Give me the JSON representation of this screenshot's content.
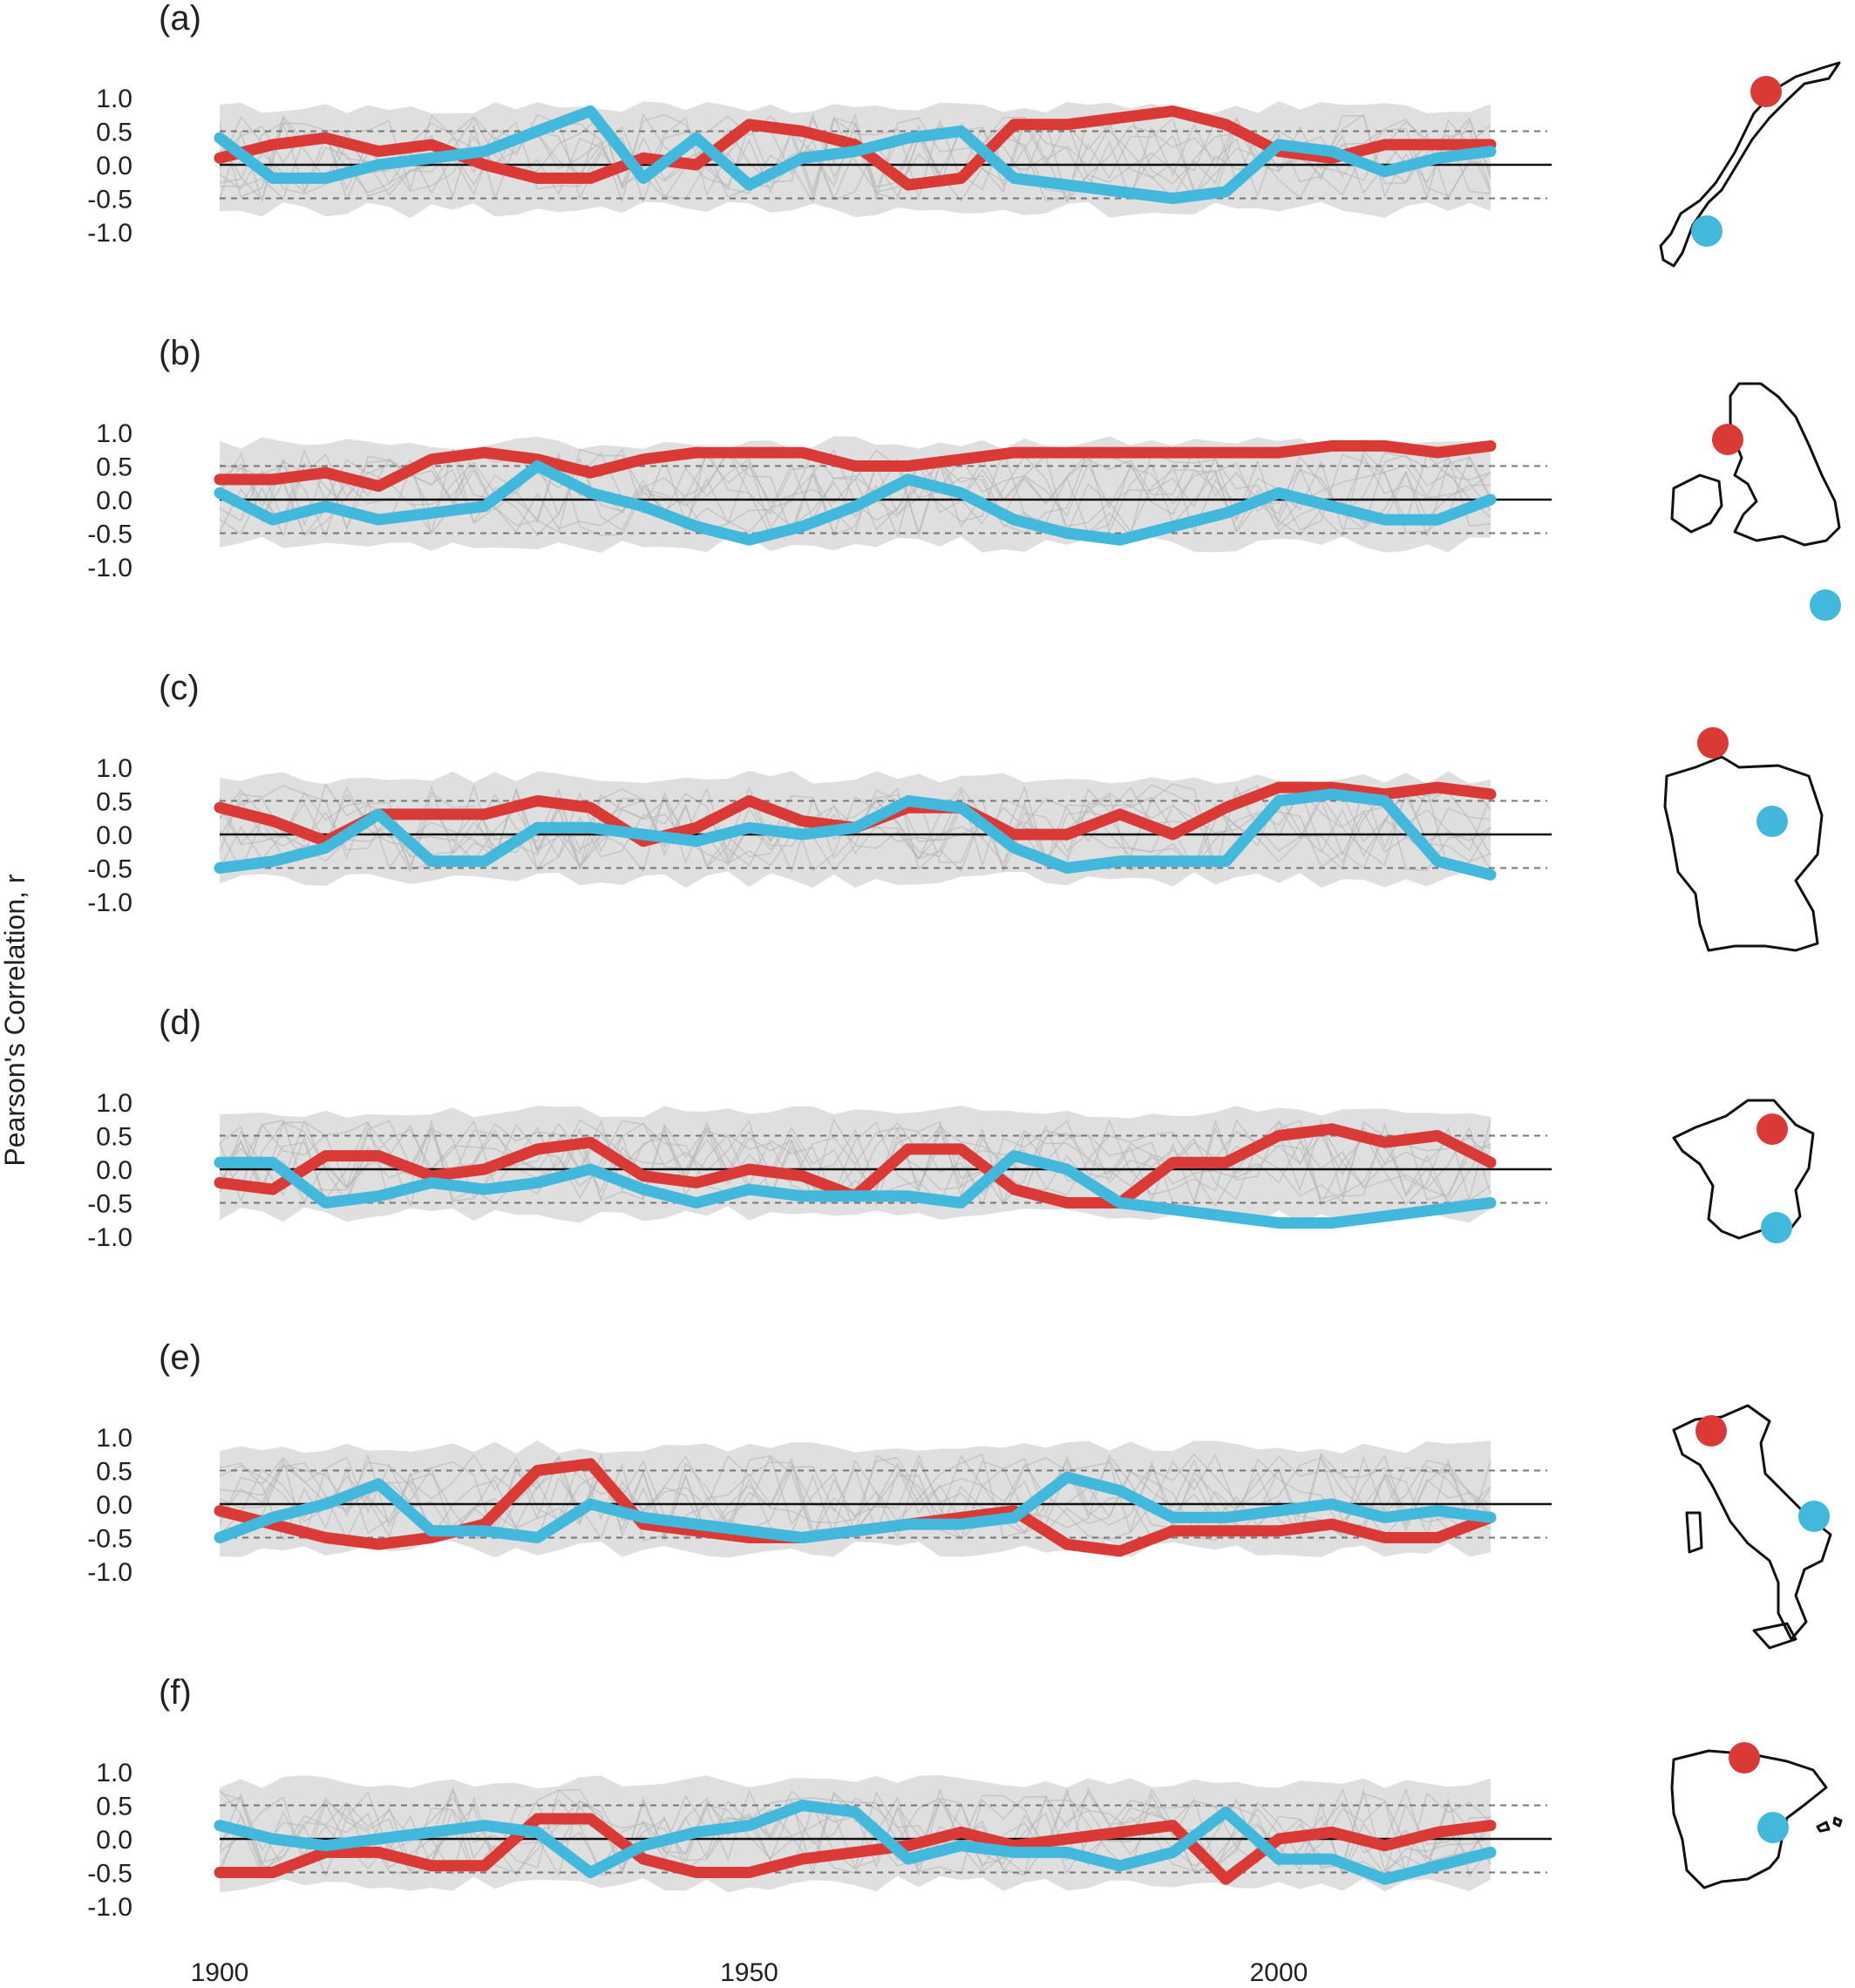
{
  "figure": {
    "ylabel": "Pearson's Correlation, r",
    "x_ticks": [
      "1900",
      "1950",
      "2000"
    ],
    "y_ticks": [
      "1.0",
      "0.5",
      "0.0",
      "-0.5",
      "-1.0"
    ],
    "colors": {
      "red": "#d93a35",
      "blue": "#42b8dc",
      "gray": "#c4c4c4",
      "dashed": "#777777",
      "zero": "#111111"
    },
    "map_icons": [
      "norway-map-icon",
      "uk-ireland-map-icon",
      "germany-map-icon",
      "france-map-icon",
      "italy-map-icon",
      "spain-map-icon"
    ]
  },
  "chart_data": [
    {
      "type": "line",
      "panel": "(a)",
      "map": "norway-map-icon",
      "xlim": [
        1900,
        2020
      ],
      "ylim": [
        -1,
        1
      ],
      "dashed_lines": [
        0.5,
        -0.5
      ],
      "zero_line": 0,
      "x": [
        1900,
        1905,
        1910,
        1915,
        1920,
        1925,
        1930,
        1935,
        1940,
        1945,
        1950,
        1955,
        1960,
        1965,
        1970,
        1975,
        1980,
        1985,
        1990,
        1995,
        2000,
        2005,
        2010,
        2015,
        2020
      ],
      "series": [
        {
          "color": "red",
          "values": [
            0.1,
            0.3,
            0.4,
            0.2,
            0.3,
            0.0,
            -0.2,
            -0.2,
            0.1,
            0.0,
            0.6,
            0.5,
            0.3,
            -0.3,
            -0.2,
            0.6,
            0.6,
            0.7,
            0.8,
            0.6,
            0.2,
            0.1,
            0.3,
            0.3,
            0.3
          ]
        },
        {
          "color": "blue",
          "values": [
            0.4,
            -0.2,
            -0.2,
            0.0,
            0.1,
            0.2,
            0.5,
            0.8,
            -0.2,
            0.4,
            -0.3,
            0.1,
            0.2,
            0.4,
            0.5,
            -0.2,
            -0.3,
            -0.4,
            -0.5,
            -0.4,
            0.3,
            0.2,
            -0.1,
            0.1,
            0.2
          ]
        }
      ]
    },
    {
      "type": "line",
      "panel": "(b)",
      "map": "uk-ireland-map-icon",
      "xlim": [
        1900,
        2020
      ],
      "ylim": [
        -1,
        1
      ],
      "dashed_lines": [
        0.5,
        -0.5
      ],
      "zero_line": 0,
      "x": [
        1900,
        1905,
        1910,
        1915,
        1920,
        1925,
        1930,
        1935,
        1940,
        1945,
        1950,
        1955,
        1960,
        1965,
        1970,
        1975,
        1980,
        1985,
        1990,
        1995,
        2000,
        2005,
        2010,
        2015,
        2020
      ],
      "series": [
        {
          "color": "red",
          "values": [
            0.3,
            0.3,
            0.4,
            0.2,
            0.6,
            0.7,
            0.6,
            0.4,
            0.6,
            0.7,
            0.7,
            0.7,
            0.5,
            0.5,
            0.6,
            0.7,
            0.7,
            0.7,
            0.7,
            0.7,
            0.7,
            0.8,
            0.8,
            0.7,
            0.8
          ]
        },
        {
          "color": "blue",
          "values": [
            0.1,
            -0.3,
            -0.1,
            -0.3,
            -0.2,
            -0.1,
            0.5,
            0.1,
            -0.1,
            -0.4,
            -0.6,
            -0.4,
            -0.1,
            0.3,
            0.1,
            -0.3,
            -0.5,
            -0.6,
            -0.4,
            -0.2,
            0.1,
            -0.1,
            -0.3,
            -0.3,
            0.0
          ]
        }
      ]
    },
    {
      "type": "line",
      "panel": "(c)",
      "map": "germany-map-icon",
      "xlim": [
        1900,
        2020
      ],
      "ylim": [
        -1,
        1
      ],
      "dashed_lines": [
        0.5,
        -0.5
      ],
      "zero_line": 0,
      "x": [
        1900,
        1905,
        1910,
        1915,
        1920,
        1925,
        1930,
        1935,
        1940,
        1945,
        1950,
        1955,
        1960,
        1965,
        1970,
        1975,
        1980,
        1985,
        1990,
        1995,
        2000,
        2005,
        2010,
        2015,
        2020
      ],
      "series": [
        {
          "color": "red",
          "values": [
            0.4,
            0.2,
            -0.1,
            0.3,
            0.3,
            0.3,
            0.5,
            0.4,
            -0.1,
            0.1,
            0.5,
            0.2,
            0.1,
            0.4,
            0.4,
            0.0,
            0.0,
            0.3,
            0.0,
            0.4,
            0.7,
            0.7,
            0.6,
            0.7,
            0.6
          ]
        },
        {
          "color": "blue",
          "values": [
            -0.5,
            -0.4,
            -0.2,
            0.3,
            -0.4,
            -0.4,
            0.1,
            0.1,
            0.0,
            -0.1,
            0.1,
            0.0,
            0.1,
            0.5,
            0.4,
            -0.2,
            -0.5,
            -0.4,
            -0.4,
            -0.4,
            0.5,
            0.6,
            0.5,
            -0.4,
            -0.6
          ]
        }
      ]
    },
    {
      "type": "line",
      "panel": "(d)",
      "map": "france-map-icon",
      "xlim": [
        1900,
        2020
      ],
      "ylim": [
        -1,
        1
      ],
      "dashed_lines": [
        0.5,
        -0.5
      ],
      "zero_line": 0,
      "x": [
        1900,
        1905,
        1910,
        1915,
        1920,
        1925,
        1930,
        1935,
        1940,
        1945,
        1950,
        1955,
        1960,
        1965,
        1970,
        1975,
        1980,
        1985,
        1990,
        1995,
        2000,
        2005,
        2010,
        2015,
        2020
      ],
      "series": [
        {
          "color": "red",
          "values": [
            -0.2,
            -0.3,
            0.2,
            0.2,
            -0.1,
            0.0,
            0.3,
            0.4,
            -0.1,
            -0.2,
            0.0,
            -0.1,
            -0.4,
            0.3,
            0.3,
            -0.3,
            -0.5,
            -0.5,
            0.1,
            0.1,
            0.5,
            0.6,
            0.4,
            0.5,
            0.1
          ]
        },
        {
          "color": "blue",
          "values": [
            0.1,
            0.1,
            -0.5,
            -0.4,
            -0.2,
            -0.3,
            -0.2,
            0.0,
            -0.3,
            -0.5,
            -0.3,
            -0.4,
            -0.4,
            -0.4,
            -0.5,
            0.2,
            0.0,
            -0.5,
            -0.6,
            -0.7,
            -0.8,
            -0.8,
            -0.7,
            -0.6,
            -0.5
          ]
        }
      ]
    },
    {
      "type": "line",
      "panel": "(e)",
      "map": "italy-map-icon",
      "xlim": [
        1900,
        2020
      ],
      "ylim": [
        -1,
        1
      ],
      "dashed_lines": [
        0.5,
        -0.5
      ],
      "zero_line": 0,
      "x": [
        1900,
        1905,
        1910,
        1915,
        1920,
        1925,
        1930,
        1935,
        1940,
        1945,
        1950,
        1955,
        1960,
        1965,
        1970,
        1975,
        1980,
        1985,
        1990,
        1995,
        2000,
        2005,
        2010,
        2015,
        2020
      ],
      "series": [
        {
          "color": "red",
          "values": [
            -0.1,
            -0.3,
            -0.5,
            -0.6,
            -0.5,
            -0.3,
            0.5,
            0.6,
            -0.3,
            -0.4,
            -0.5,
            -0.5,
            -0.4,
            -0.3,
            -0.2,
            -0.1,
            -0.6,
            -0.7,
            -0.4,
            -0.4,
            -0.4,
            -0.3,
            -0.5,
            -0.5,
            -0.2
          ]
        },
        {
          "color": "blue",
          "values": [
            -0.5,
            -0.2,
            0.0,
            0.3,
            -0.4,
            -0.4,
            -0.5,
            0.0,
            -0.2,
            -0.3,
            -0.4,
            -0.5,
            -0.4,
            -0.3,
            -0.3,
            -0.2,
            0.4,
            0.2,
            -0.2,
            -0.2,
            -0.1,
            0.0,
            -0.2,
            -0.1,
            -0.2
          ]
        }
      ]
    },
    {
      "type": "line",
      "panel": "(f)",
      "map": "spain-map-icon",
      "xlim": [
        1900,
        2020
      ],
      "ylim": [
        -1,
        1
      ],
      "dashed_lines": [
        0.5,
        -0.5
      ],
      "zero_line": 0,
      "x": [
        1900,
        1905,
        1910,
        1915,
        1920,
        1925,
        1930,
        1935,
        1940,
        1945,
        1950,
        1955,
        1960,
        1965,
        1970,
        1975,
        1980,
        1985,
        1990,
        1995,
        2000,
        2005,
        2010,
        2015,
        2020
      ],
      "series": [
        {
          "color": "red",
          "values": [
            -0.5,
            -0.5,
            -0.2,
            -0.2,
            -0.4,
            -0.4,
            0.3,
            0.3,
            -0.3,
            -0.5,
            -0.5,
            -0.3,
            -0.2,
            -0.1,
            0.1,
            -0.1,
            0.0,
            0.1,
            0.2,
            -0.6,
            0.0,
            0.1,
            -0.1,
            0.1,
            0.2
          ]
        },
        {
          "color": "blue",
          "values": [
            0.2,
            0.0,
            -0.1,
            0.0,
            0.1,
            0.2,
            0.1,
            -0.5,
            -0.1,
            0.1,
            0.2,
            0.5,
            0.4,
            -0.3,
            -0.1,
            -0.2,
            -0.2,
            -0.4,
            -0.2,
            0.4,
            -0.3,
            -0.3,
            -0.6,
            -0.4,
            -0.2
          ]
        }
      ]
    }
  ]
}
